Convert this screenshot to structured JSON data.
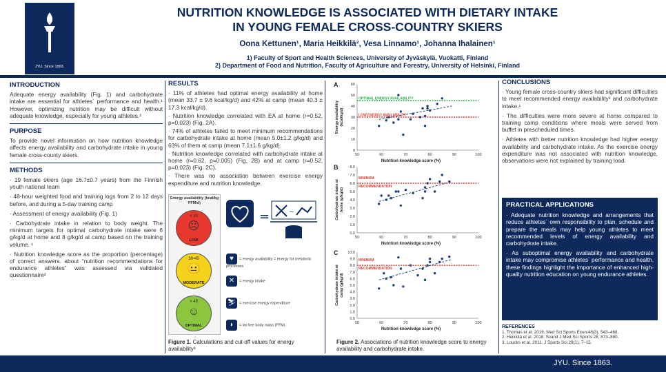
{
  "header": {
    "title_line1": "NUTRITION KNOWLEDGE IS ASSOCIATED WITH DIETARY INTAKE",
    "title_line2": "IN YOUNG FEMALE CROSS-COUNTRY SKIERS",
    "authors": "Oona Kettunen¹, Maria Heikkilä², Vesa Linnamo¹, Johanna Ihalainen¹",
    "affiliation1": "1) Faculty of Sport and Health Sciences, University of Jyväskylä, Vuokatti, Finland",
    "affiliation2": "2) Department of Food and Nutrition, Faculty of Agriculture and Forestry, University of Helsinki, Finland",
    "logo_text": "JYU. Since 1863."
  },
  "intro": {
    "title": "INTRODUCTION",
    "text": "Adequate energy availability (Fig. 1) and carbohydrate intake are essential for athletes´ performance and health.¹ However, optimizing nutrition may be difficult without adequate knowledge, especially for young athletes.²"
  },
  "purpose": {
    "title": "PURPOSE",
    "text": "To provide novel information on how nutrition knowledge affects energy availability and carbohydrate intake in young female cross-county skiers."
  },
  "methods": {
    "title": "METHODS",
    "items": [
      "· 19 female skiers (age 16.7±0.7 years) from the Finnish youth national team",
      "· 48-hour weighted food and training logs from 2 to 12 days before, and during a 5-day training camp",
      "· Assessment of energy availability (Fig. 1)",
      "· Carbohydrate intake in relation to body weight. The minimum targets for optimal carbohydrate intake were 6 g/kg/d at home and 8 g/kg/d at camp based on the training volume. ¹",
      "· Nutrition knowledge score as the proportion (percentage) of correct answers. about “nutrition recommendations for endurance athletes” was assessed via validated questionnaire²"
    ]
  },
  "results": {
    "title": "RESULTS",
    "items": [
      "· 11% of athletes had optimal energy availability at home (mean 33.7 ± 9.6 kcal/kg/d) and 42% at camp (mean 40.3 ± 17.3 kcal/kg/d).",
      "· Nutrition knowledge correlated with EA at home (r=0.52, p=0.023) (Fig. 2A).",
      "· 74% of athletes failed to meet minimum recommendations for carbohydrate intake at home (mean 5.0±1.2 g/kg/d) and 63% of them at camp (mean 7.1±1.6 g/kg/d).",
      "· Nutrition knowledge correlated with carbohydrate intake at home (r=0.62, p=0.005) (Fig. 2B) and at camp (r=0.52, p=0.023) (Fig. 2C).",
      "· There was no association between exercise energy expenditure and nutrition knowledge."
    ]
  },
  "figure1": {
    "box_title": "Energy availability (kcal/kg FFM/d)",
    "levels": [
      {
        "range": "< 30",
        "label": "LOW",
        "color": "#e8382e",
        "face": "☹"
      },
      {
        "range": "30-45",
        "label": "MODERATE",
        "color": "#f5d21b",
        "face": "😐"
      },
      {
        "range": "> 45",
        "label": "OPTIMAL",
        "color": "#8cc63f",
        "face": "☺"
      }
    ],
    "legend": [
      "= energy availability = energy for metabolic processes",
      "= energy intake",
      "= exercise energy expenditure",
      "= fat free body mass (FFM)"
    ],
    "caption_bold": "Figure 1.",
    "caption": " Calculations and cut-off values for energy availability³"
  },
  "figure2": {
    "caption_bold": "Figure 2.",
    "caption": " Associations of nutrition knowledge score to energy availability and carbohydrate intake."
  },
  "chart_data": [
    {
      "type": "scatter",
      "panel": "A",
      "xlabel": "Nutrition knowledge score (%)",
      "ylabel": "Energy availability (kcal/kg/d)",
      "xlim": [
        50,
        100
      ],
      "ylim": [
        0,
        60
      ],
      "xticks": [
        50,
        60,
        70,
        80,
        90,
        100
      ],
      "yticks": [
        0,
        10,
        20,
        30,
        40,
        50,
        60
      ],
      "reference_lines": [
        {
          "label": "OPTIMAL ENERGY AVAILABILITY",
          "y": 45,
          "color": "#2aa84a"
        },
        {
          "label": "LOW ENERGY AVAILABILITY",
          "y": 30,
          "color": "#e03a2e"
        }
      ],
      "points": [
        [
          59,
          22
        ],
        [
          62,
          27
        ],
        [
          63,
          30
        ],
        [
          65,
          25
        ],
        [
          67,
          50
        ],
        [
          67,
          28
        ],
        [
          68,
          35
        ],
        [
          69,
          14
        ],
        [
          72,
          28
        ],
        [
          73,
          33
        ],
        [
          76,
          30
        ],
        [
          77,
          38
        ],
        [
          78,
          22
        ],
        [
          78,
          31
        ],
        [
          79,
          38
        ],
        [
          79,
          40
        ],
        [
          80,
          36
        ],
        [
          83,
          42
        ],
        [
          85,
          47
        ]
      ],
      "trend": [
        [
          59,
          28
        ],
        [
          89,
          40
        ]
      ]
    },
    {
      "type": "scatter",
      "panel": "B",
      "xlabel": "Nutrition knowledge score (%)",
      "ylabel": "Carbohydrate intake at home (g/kg/d)",
      "xlim": [
        50,
        100
      ],
      "ylim": [
        0,
        8
      ],
      "xticks": [
        50,
        60,
        70,
        80,
        90,
        100
      ],
      "yticks": [
        0.0,
        1.0,
        2.0,
        3.0,
        4.0,
        5.0,
        6.0,
        7.0,
        8.0
      ],
      "reference_lines": [
        {
          "label": "MINIMUM RECOMMENDATION",
          "y": 6,
          "color": "#e03a2e"
        }
      ],
      "points": [
        [
          59,
          3.5
        ],
        [
          60,
          4.5
        ],
        [
          62,
          4.0
        ],
        [
          63,
          4.5
        ],
        [
          64,
          4.2
        ],
        [
          66,
          5.0
        ],
        [
          67,
          5.0
        ],
        [
          68,
          3.3
        ],
        [
          70,
          5.2
        ],
        [
          73,
          4.8
        ],
        [
          77,
          4.2
        ],
        [
          78,
          5.0
        ],
        [
          78,
          5.5
        ],
        [
          79,
          6.0
        ],
        [
          80,
          6.5
        ],
        [
          82,
          5.0
        ],
        [
          84,
          6.2
        ],
        [
          85,
          7.0
        ],
        [
          88,
          6.2
        ]
      ],
      "trend": [
        [
          59,
          3.8
        ],
        [
          89,
          6.2
        ]
      ]
    },
    {
      "type": "scatter",
      "panel": "C",
      "xlabel": "Nutrition knowledge score (%)",
      "ylabel": "Carbohydrate intake at camp (g/kg/d)",
      "xlim": [
        50,
        100
      ],
      "ylim": [
        0,
        10
      ],
      "xticks": [
        50,
        60,
        70,
        80,
        90,
        100
      ],
      "yticks": [
        0.0,
        1.0,
        2.0,
        3.0,
        4.0,
        5.0,
        6.0,
        7.0,
        8.0,
        9.0,
        10.0
      ],
      "reference_lines": [
        {
          "label": "MINIMUM RECOMMENDATION",
          "y": 8,
          "color": "#e03a2e"
        }
      ],
      "points": [
        [
          59,
          4.5
        ],
        [
          61,
          6.8
        ],
        [
          62,
          6.0
        ],
        [
          64,
          6.2
        ],
        [
          65,
          5.0
        ],
        [
          67,
          9.2
        ],
        [
          68,
          7.5
        ],
        [
          69,
          4.8
        ],
        [
          72,
          8.0
        ],
        [
          75,
          6.5
        ],
        [
          77,
          7.5
        ],
        [
          78,
          5.8
        ],
        [
          79,
          8.0
        ],
        [
          80,
          8.5
        ],
        [
          80,
          9.0
        ],
        [
          82,
          6.8
        ],
        [
          84,
          8.5
        ],
        [
          85,
          9.0
        ],
        [
          88,
          9.3
        ]
      ],
      "trend": [
        [
          59,
          5.8
        ],
        [
          89,
          8.9
        ]
      ]
    }
  ],
  "conclusions": {
    "title": "CONCLUSIONS",
    "items": [
      "· Young female cross-country skiers had significant difficulties to meet recommended energy availability³ and carbohydrate intake.¹",
      "· The difficulties were more severe at home compared to training camp conditions where meals were served from buffet in prescheduled times.",
      "· Athletes with better nutrition knowledge had higher energy availability and carbohydrate intake. As the exercise energy expenditure was not associated with nutrition knowledge, observations were not explained by training load."
    ]
  },
  "practical": {
    "title": "PRACTICAL APPLICATIONS",
    "items": [
      "· Adequate nutrition knowledge and arrangements that reduce athletes´ own responsibility to plan, schedule and prepare the meals may help young athletes to meet recommended levels of energy availability and carbohydrate intake.",
      "· As suboptimal energy availability and carbohydrate intake may compromise athletes´ performance and health, these findings highlight the importance of enhanced high-quality nutrition education on young endurance athletes."
    ]
  },
  "references": {
    "title": "REFERENCES",
    "items": [
      "1. Thomas et al. 2016. Med Sci Sports Exerc48(3), 543–468.",
      "2. Heikkilä et al. 2018. Scand J Med Sci Sports 28, 873–880.",
      "3. Loucks et al. 2011. J Sports Sci 29(1), 7–15."
    ]
  },
  "footer": {
    "text": "JYU. Since 1863."
  }
}
